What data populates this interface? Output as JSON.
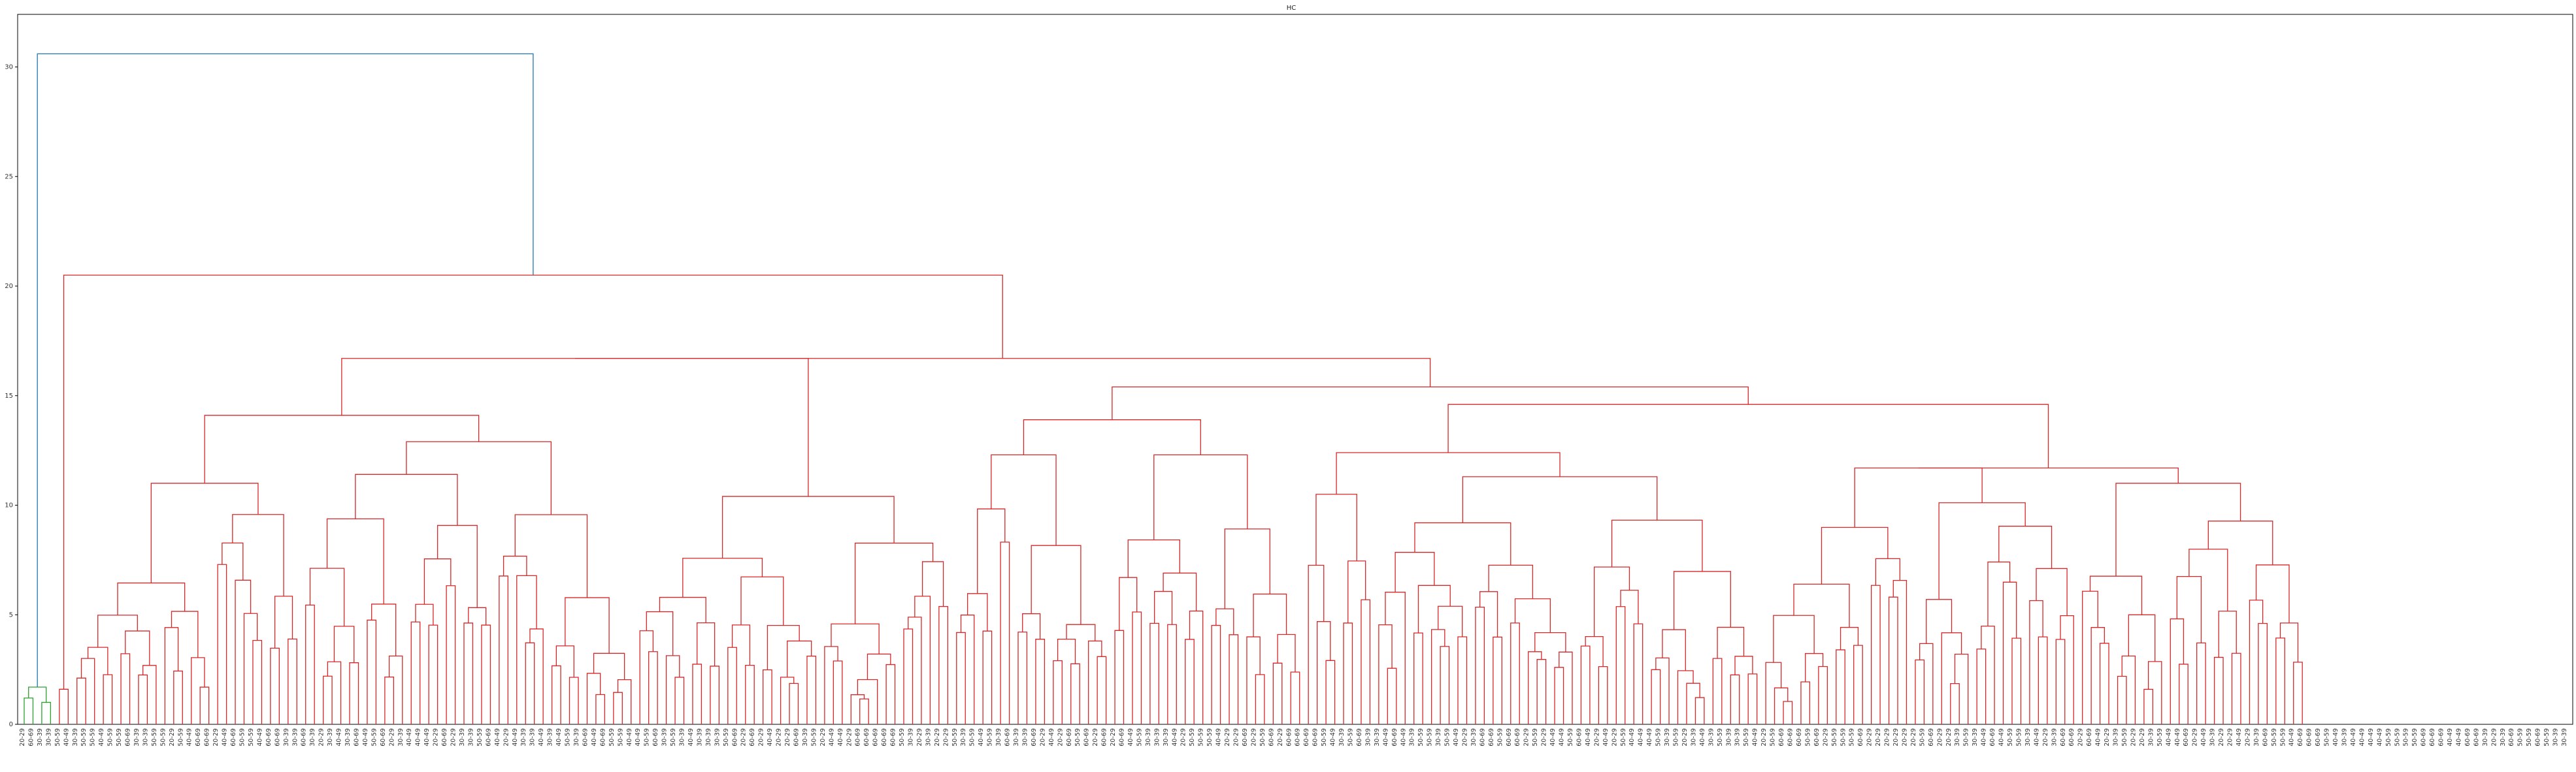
{
  "chart_data": {
    "type": "dendrogram",
    "title": "HC",
    "xlabel": "",
    "ylabel": "",
    "ylim": [
      0,
      32.4
    ],
    "yticks": [
      0,
      5,
      10,
      15,
      20,
      25,
      30
    ],
    "grid": false,
    "colors": {
      "root_link": "#1f77b4",
      "main_cluster": "#d62728",
      "small_cluster": "#2ca02c",
      "axes": "#000000"
    },
    "leaf_label_pattern": [
      "20-29",
      "30-39",
      "40-49",
      "50-59",
      "60-69"
    ],
    "leaf_count": 290,
    "merges": [
      {
        "name": "root",
        "height": 30.6,
        "color": "#1f77b4"
      },
      {
        "name": "small-green-cluster",
        "height": 1.7,
        "color": "#2ca02c"
      },
      {
        "name": "main-red-cluster",
        "height": 20.5,
        "color": "#d62728"
      },
      {
        "name": "left-block",
        "height": 16.7,
        "color": "#d62728"
      },
      {
        "name": "right-block",
        "height": 15.4,
        "color": "#d62728"
      },
      {
        "name": "sub-a",
        "height": 14.1,
        "color": "#d62728"
      },
      {
        "name": "sub-b",
        "height": 14.6,
        "color": "#d62728"
      },
      {
        "name": "sub-c",
        "height": 13.9,
        "color": "#d62728"
      },
      {
        "name": "sub-d",
        "height": 12.9,
        "color": "#d62728"
      },
      {
        "name": "sub-e",
        "height": 12.3,
        "color": "#d62728"
      },
      {
        "name": "sub-f",
        "height": 11.7,
        "color": "#d62728"
      },
      {
        "name": "sub-g",
        "height": 11.3,
        "color": "#d62728"
      },
      {
        "name": "sub-h",
        "height": 11.0,
        "color": "#d62728"
      },
      {
        "name": "sub-i",
        "height": 10.4,
        "color": "#d62728"
      },
      {
        "name": "sub-j",
        "height": 10.2,
        "color": "#d62728"
      }
    ]
  }
}
